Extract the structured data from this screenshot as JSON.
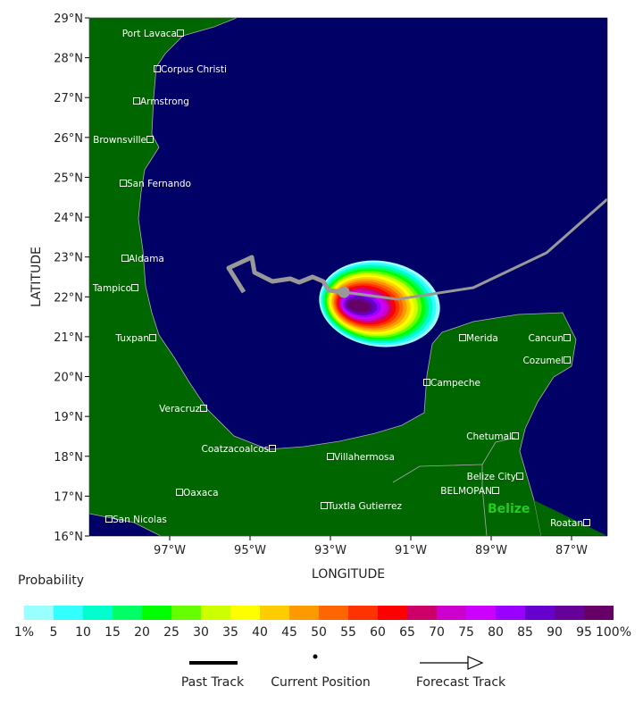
{
  "map": {
    "ylabel": "LATITUDE",
    "xlabel": "LONGITUDE",
    "lat_ticks": [
      "29°N",
      "28°N",
      "27°N",
      "26°N",
      "25°N",
      "24°N",
      "23°N",
      "22°N",
      "21°N",
      "20°N",
      "19°N",
      "18°N",
      "17°N",
      "16°N"
    ],
    "lon_ticks": [
      "97°W",
      "95°W",
      "93°W",
      "91°W",
      "89°W",
      "87°W"
    ],
    "colors": {
      "ocean": "#000066",
      "land": "#006600",
      "track": "#999999"
    },
    "cities": [
      "Port Lavaca",
      "Corpus Christi",
      "Armstrong",
      "Brownsville",
      "San Fernando",
      "Aldama",
      "Tampico",
      "Tuxpan",
      "Veracruz",
      "Coatzacoalcos",
      "Villahermosa",
      "Oaxaca",
      "San Nicolas",
      "Tuxtla Gutierrez",
      "Campeche",
      "Merida",
      "Cancun",
      "Cozumel",
      "Chetumal",
      "Belize City",
      "BELMOPAN",
      "Roatan"
    ],
    "country_label": "Belize"
  },
  "legend": {
    "title": "Probability",
    "labels": [
      "1%",
      "5",
      "10",
      "15",
      "20",
      "25",
      "30",
      "35",
      "40",
      "45",
      "50",
      "55",
      "60",
      "65",
      "70",
      "75",
      "80",
      "85",
      "90",
      "95",
      "100%"
    ],
    "colors": [
      "#99ffff",
      "#33ffff",
      "#00ffcc",
      "#00ff66",
      "#00ff00",
      "#66ff00",
      "#ccff00",
      "#ffff00",
      "#ffcc00",
      "#ff9900",
      "#ff6600",
      "#ff3300",
      "#ff0000",
      "#cc0066",
      "#cc00cc",
      "#cc00ff",
      "#9900ff",
      "#6600cc",
      "#660099",
      "#660066"
    ],
    "past_track": "Past Track",
    "current_position": "Current Position",
    "forecast_track": "Forecast Track"
  }
}
